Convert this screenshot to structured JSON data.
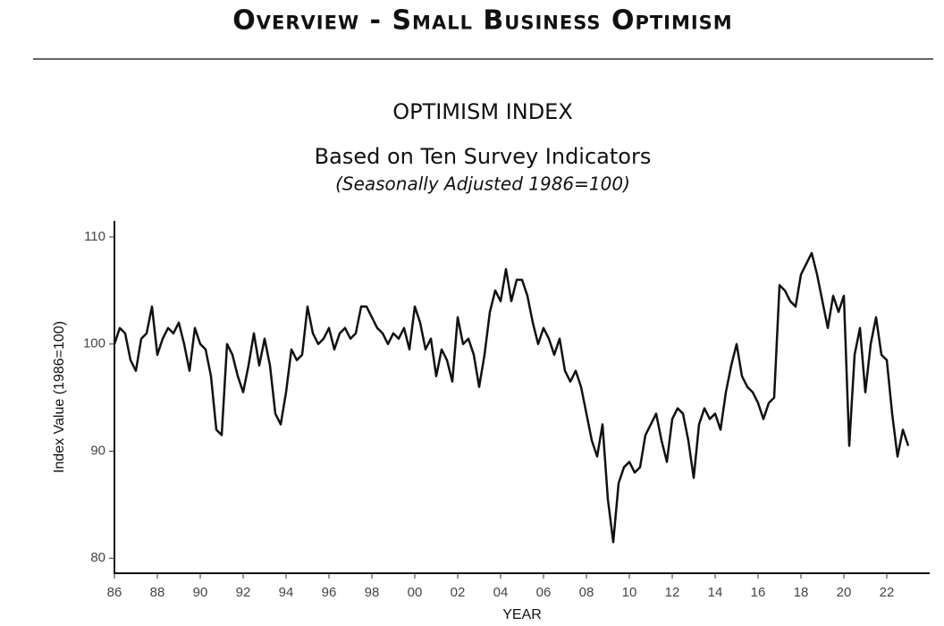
{
  "header": {
    "title": "Overview - Small Business Optimism"
  },
  "chart_data": {
    "type": "line",
    "title": "OPTIMISM INDEX",
    "subtitle": "Based on Ten Survey Indicators",
    "note": "(Seasonally Adjusted 1986=100)",
    "xlabel": "YEAR",
    "ylabel": "Index Value (1986=100)",
    "xlim": [
      1986,
      2024
    ],
    "ylim": [
      78.6,
      111.5
    ],
    "xticks": [
      {
        "value": 1986,
        "label": "86"
      },
      {
        "value": 1988,
        "label": "88"
      },
      {
        "value": 1990,
        "label": "90"
      },
      {
        "value": 1992,
        "label": "92"
      },
      {
        "value": 1994,
        "label": "94"
      },
      {
        "value": 1996,
        "label": "96"
      },
      {
        "value": 1998,
        "label": "98"
      },
      {
        "value": 2000,
        "label": "00"
      },
      {
        "value": 2002,
        "label": "02"
      },
      {
        "value": 2004,
        "label": "04"
      },
      {
        "value": 2006,
        "label": "06"
      },
      {
        "value": 2008,
        "label": "08"
      },
      {
        "value": 2010,
        "label": "10"
      },
      {
        "value": 2012,
        "label": "12"
      },
      {
        "value": 2014,
        "label": "14"
      },
      {
        "value": 2016,
        "label": "16"
      },
      {
        "value": 2018,
        "label": "18"
      },
      {
        "value": 2020,
        "label": "20"
      },
      {
        "value": 2022,
        "label": "22"
      }
    ],
    "yticks": [
      80,
      90,
      100,
      110
    ],
    "grid": false,
    "x": [
      1986,
      1986.25,
      1986.5,
      1986.75,
      1987,
      1987.25,
      1987.5,
      1987.75,
      1988,
      1988.25,
      1988.5,
      1988.75,
      1989,
      1989.25,
      1989.5,
      1989.75,
      1990,
      1990.25,
      1990.5,
      1990.75,
      1991,
      1991.25,
      1991.5,
      1991.75,
      1992,
      1992.25,
      1992.5,
      1992.75,
      1993,
      1993.25,
      1993.5,
      1993.75,
      1994,
      1994.25,
      1994.5,
      1994.75,
      1995,
      1995.25,
      1995.5,
      1995.75,
      1996,
      1996.25,
      1996.5,
      1996.75,
      1997,
      1997.25,
      1997.5,
      1997.75,
      1998,
      1998.25,
      1998.5,
      1998.75,
      1999,
      1999.25,
      1999.5,
      1999.75,
      2000,
      2000.25,
      2000.5,
      2000.75,
      2001,
      2001.25,
      2001.5,
      2001.75,
      2002,
      2002.25,
      2002.5,
      2002.75,
      2003,
      2003.25,
      2003.5,
      2003.75,
      2004,
      2004.25,
      2004.5,
      2004.75,
      2005,
      2005.25,
      2005.5,
      2005.75,
      2006,
      2006.25,
      2006.5,
      2006.75,
      2007,
      2007.25,
      2007.5,
      2007.75,
      2008,
      2008.25,
      2008.5,
      2008.75,
      2009,
      2009.25,
      2009.5,
      2009.75,
      2010,
      2010.25,
      2010.5,
      2010.75,
      2011,
      2011.25,
      2011.5,
      2011.75,
      2012,
      2012.25,
      2012.5,
      2012.75,
      2013,
      2013.25,
      2013.5,
      2013.75,
      2014,
      2014.25,
      2014.5,
      2014.75,
      2015,
      2015.25,
      2015.5,
      2015.75,
      2016,
      2016.25,
      2016.5,
      2016.75,
      2017,
      2017.25,
      2017.5,
      2017.75,
      2018,
      2018.25,
      2018.5,
      2018.75,
      2019,
      2019.25,
      2019.5,
      2019.75,
      2020,
      2020.25,
      2020.5,
      2020.75,
      2021,
      2021.25,
      2021.5,
      2021.75,
      2022,
      2022.25,
      2022.5,
      2022.75,
      2023
    ],
    "series": [
      {
        "color": "#111111",
        "values": [
          100,
          101.5,
          101,
          98.5,
          97.5,
          100.5,
          101,
          103.5,
          99,
          100.5,
          101.5,
          101,
          102,
          100,
          97.5,
          101.5,
          100,
          99.5,
          97,
          92,
          91.5,
          100,
          99,
          97,
          95.5,
          98,
          101,
          98,
          100.5,
          98,
          93.5,
          92.5,
          95.5,
          99.5,
          98.5,
          99,
          103.5,
          101,
          100,
          100.5,
          101.5,
          99.5,
          101,
          101.5,
          100.5,
          101,
          103.5,
          103.5,
          102.5,
          101.5,
          101,
          100,
          101,
          100.5,
          101.5,
          99.5,
          103.5,
          102,
          99.5,
          100.5,
          97,
          99.5,
          98.5,
          96.5,
          102.5,
          100,
          100.5,
          99,
          96,
          99,
          103,
          105,
          104,
          107,
          104,
          106,
          106,
          104.5,
          102,
          100,
          101.5,
          100.5,
          99,
          100.5,
          97.5,
          96.5,
          97.5,
          96,
          93.5,
          91,
          89.5,
          92.5,
          85.5,
          81.5,
          87,
          88.5,
          89,
          88,
          88.5,
          91.5,
          92.5,
          93.5,
          91,
          89,
          93,
          94,
          93.5,
          91,
          87.5,
          92.5,
          94,
          93,
          93.5,
          92,
          95.5,
          98,
          100,
          97,
          96,
          95.5,
          94.5,
          93,
          94.5,
          95,
          105.5,
          105,
          104,
          103.5,
          106.5,
          107.5,
          108.5,
          106.5,
          104,
          101.5,
          104.5,
          103,
          104.5,
          90.5,
          99,
          101.5,
          95.5,
          100,
          102.5,
          99,
          98.5,
          93.5,
          89.5,
          92,
          90.5
        ]
      }
    ]
  }
}
